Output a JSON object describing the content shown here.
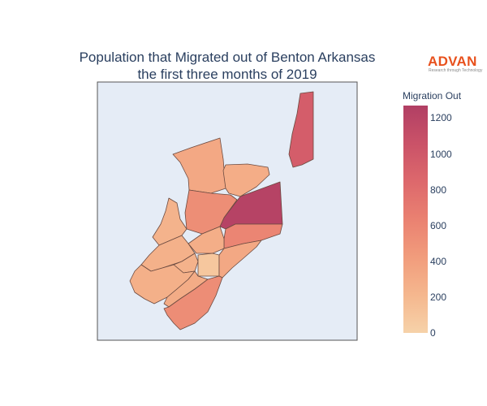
{
  "title_line1": "Population that Migrated out of Benton Arkansas",
  "title_line2": "the first three months of 2019",
  "logo": {
    "word": "ADVAN",
    "tagline": "Research through Technology"
  },
  "colorbar": {
    "title": "Migration Out",
    "range": [
      0,
      1270
    ],
    "ticks": [
      "1200",
      "1000",
      "800",
      "600",
      "400",
      "200",
      "0"
    ],
    "tick_values": [
      1200,
      1000,
      800,
      600,
      400,
      200,
      0
    ],
    "scale": [
      "#f6d2a9",
      "#f5b78e",
      "#f19c7c",
      "#ea8171",
      "#dd686c",
      "#ca5268",
      "#b13f64"
    ]
  },
  "map": {
    "background": "#e5ecf6",
    "border_color": "#555555",
    "region_stroke": "#6b4a40"
  },
  "chart_data": {
    "type": "choropleth",
    "title": "Population that Migrated out of Benton Arkansas the first three months of 2019",
    "colorbar_title": "Migration Out",
    "value_range": [
      0,
      1270
    ],
    "regions": [
      {
        "id": "northeast-narrow",
        "value": 950
      },
      {
        "id": "east-central-large",
        "value": 1230
      },
      {
        "id": "north-center",
        "value": 330
      },
      {
        "id": "north-center-right",
        "value": 290
      },
      {
        "id": "center",
        "value": 530
      },
      {
        "id": "center-right",
        "value": 600
      },
      {
        "id": "west-upper",
        "value": 240
      },
      {
        "id": "west-lower",
        "value": 260
      },
      {
        "id": "center-small",
        "value": 280
      },
      {
        "id": "center-small-south",
        "value": 250
      },
      {
        "id": "south-center-square",
        "value": 90
      },
      {
        "id": "southeast-strip",
        "value": 330
      },
      {
        "id": "southwest",
        "value": 270
      },
      {
        "id": "south-strip",
        "value": 300
      },
      {
        "id": "south",
        "value": 540
      }
    ]
  }
}
